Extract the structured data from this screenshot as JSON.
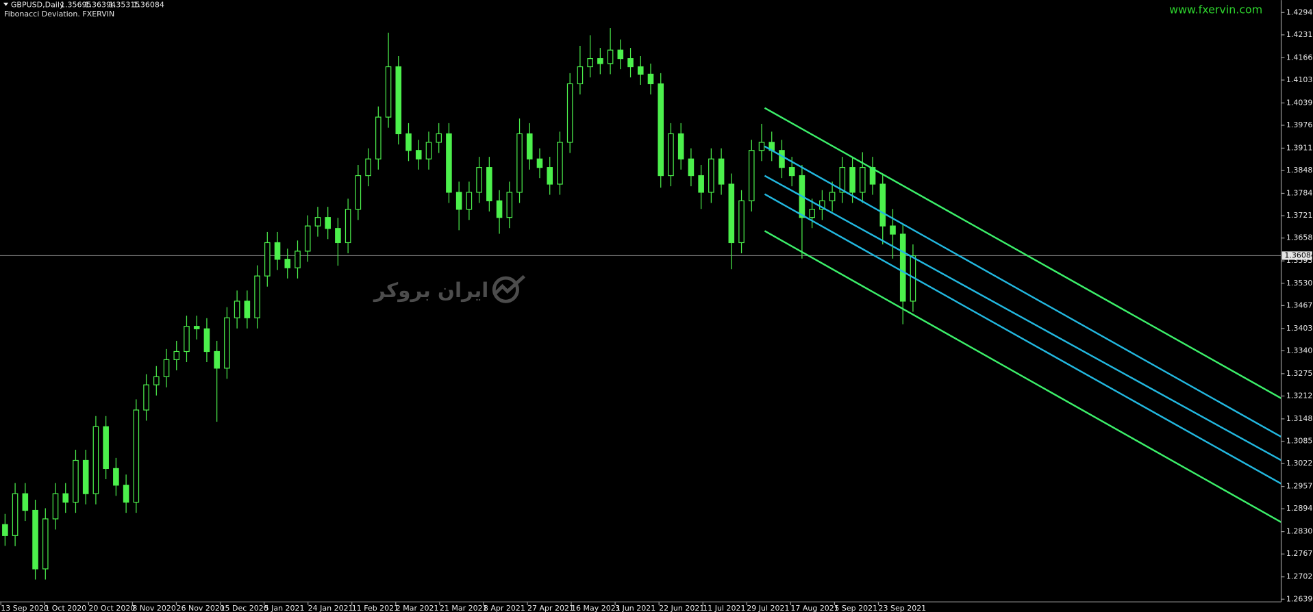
{
  "chart_data": {
    "type": "candlestick",
    "title": "GBPUSD,Daily",
    "header_values": [
      "1.35695",
      "1.36394",
      "1.35315",
      "1.36084"
    ],
    "indicator": "Fibonacci Deviation. FXERVIN",
    "website": "www.fxervin.com",
    "watermark": "ایران بروکر",
    "color": "#4cf04c",
    "xlim": [
      0,
      127
    ],
    "ylim": [
      1.2632,
      1.4329
    ],
    "yticks": [
      {
        "value": 1.4294,
        "label": "1.42940"
      },
      {
        "value": 1.4231,
        "label": "1.42310"
      },
      {
        "value": 1.41665,
        "label": "1.41665"
      },
      {
        "value": 1.41035,
        "label": "1.41035"
      },
      {
        "value": 1.4039,
        "label": "1.40390"
      },
      {
        "value": 1.3976,
        "label": "1.39760"
      },
      {
        "value": 1.39115,
        "label": "1.39115"
      },
      {
        "value": 1.38485,
        "label": "1.38485"
      },
      {
        "value": 1.3784,
        "label": "1.37840"
      },
      {
        "value": 1.3721,
        "label": "1.37210"
      },
      {
        "value": 1.3658,
        "label": "1.36580"
      },
      {
        "value": 1.35935,
        "label": "1.35935"
      },
      {
        "value": 1.35305,
        "label": "1.35305"
      },
      {
        "value": 1.34675,
        "label": "1.34675"
      },
      {
        "value": 1.3403,
        "label": "1.34030"
      },
      {
        "value": 1.334,
        "label": "1.33400"
      },
      {
        "value": 1.32755,
        "label": "1.32755"
      },
      {
        "value": 1.32125,
        "label": "1.32125"
      },
      {
        "value": 1.3148,
        "label": "1.31480"
      },
      {
        "value": 1.3085,
        "label": "1.30850"
      },
      {
        "value": 1.3022,
        "label": "1.30220"
      },
      {
        "value": 1.29575,
        "label": "1.29575"
      },
      {
        "value": 1.28945,
        "label": "1.28945"
      },
      {
        "value": 1.283,
        "label": "1.28300"
      },
      {
        "value": 1.2767,
        "label": "1.27670"
      },
      {
        "value": 1.27025,
        "label": "1.27025"
      },
      {
        "value": 1.26395,
        "label": "1.26395"
      }
    ],
    "current_price": {
      "value": 1.36084,
      "label": "1.36084"
    },
    "x_labels": [
      "13 Sep 2020",
      "1 Oct 2020",
      "20 Oct 2020",
      "8 Nov 2020",
      "26 Nov 2020",
      "15 Dec 2020",
      "5 Jan 2021",
      "24 Jan 2021",
      "11 Feb 2021",
      "2 Mar 2021",
      "21 Mar 2021",
      "8 Apr 2021",
      "27 Apr 2021",
      "16 May 2021",
      "3 Jun 2021",
      "22 Jun 2021",
      "11 Jul 2021",
      "29 Jul 2021",
      "17 Aug 2021",
      "5 Sep 2021",
      "23 Sep 2021"
    ],
    "ohlc": [
      [
        1.285,
        1.288,
        1.279,
        1.2819
      ],
      [
        1.2819,
        1.2967,
        1.2789,
        1.2937
      ],
      [
        1.2937,
        1.2967,
        1.286,
        1.289
      ],
      [
        1.289,
        1.292,
        1.2695,
        1.2725
      ],
      [
        1.2725,
        1.2896,
        1.2695,
        1.2866
      ],
      [
        1.2866,
        1.2967,
        1.2836,
        1.2937
      ],
      [
        1.2937,
        1.2967,
        1.2883,
        1.2913
      ],
      [
        1.2913,
        1.3061,
        1.2883,
        1.3031
      ],
      [
        1.3031,
        1.3061,
        1.2907,
        1.2937
      ],
      [
        1.2937,
        1.3156,
        1.2907,
        1.3126
      ],
      [
        1.3126,
        1.3156,
        1.2978,
        1.3008
      ],
      [
        1.3008,
        1.3038,
        1.2931,
        1.2961
      ],
      [
        1.2961,
        1.2991,
        1.2883,
        1.2913
      ],
      [
        1.2913,
        1.3203,
        1.2883,
        1.3173
      ],
      [
        1.3173,
        1.3274,
        1.3143,
        1.3244
      ],
      [
        1.3244,
        1.3297,
        1.3214,
        1.3267
      ],
      [
        1.3267,
        1.3345,
        1.3237,
        1.3315
      ],
      [
        1.3315,
        1.3368,
        1.3285,
        1.3338
      ],
      [
        1.3338,
        1.3439,
        1.3308,
        1.3409
      ],
      [
        1.3409,
        1.3439,
        1.3372,
        1.3402
      ],
      [
        1.3402,
        1.3432,
        1.3308,
        1.3338
      ],
      [
        1.3338,
        1.3368,
        1.314,
        1.3291
      ],
      [
        1.3291,
        1.3463,
        1.3261,
        1.3433
      ],
      [
        1.3433,
        1.351,
        1.3403,
        1.348
      ],
      [
        1.348,
        1.351,
        1.3403,
        1.3433
      ],
      [
        1.3433,
        1.3581,
        1.3403,
        1.3551
      ],
      [
        1.3551,
        1.3675,
        1.3521,
        1.3645
      ],
      [
        1.3645,
        1.3675,
        1.3568,
        1.3598
      ],
      [
        1.3598,
        1.3628,
        1.3544,
        1.3574
      ],
      [
        1.3574,
        1.3651,
        1.3544,
        1.3621
      ],
      [
        1.3621,
        1.3722,
        1.3591,
        1.3692
      ],
      [
        1.3692,
        1.3746,
        1.3662,
        1.3716
      ],
      [
        1.3716,
        1.3746,
        1.3655,
        1.3685
      ],
      [
        1.3685,
        1.3715,
        1.358,
        1.3645
      ],
      [
        1.3645,
        1.3769,
        1.3615,
        1.3739
      ],
      [
        1.3739,
        1.3864,
        1.3709,
        1.3834
      ],
      [
        1.3834,
        1.3911,
        1.3804,
        1.3881
      ],
      [
        1.3881,
        1.4029,
        1.3851,
        1.3999
      ],
      [
        1.3999,
        1.4237,
        1.3969,
        1.4141
      ],
      [
        1.4141,
        1.4171,
        1.3922,
        1.3952
      ],
      [
        1.3952,
        1.3982,
        1.3875,
        1.3905
      ],
      [
        1.3905,
        1.3935,
        1.3851,
        1.3881
      ],
      [
        1.3881,
        1.3958,
        1.3851,
        1.3928
      ],
      [
        1.3928,
        1.3982,
        1.3898,
        1.3952
      ],
      [
        1.3952,
        1.3982,
        1.3757,
        1.3787
      ],
      [
        1.3787,
        1.3817,
        1.368,
        1.3739
      ],
      [
        1.3739,
        1.3817,
        1.3709,
        1.3787
      ],
      [
        1.3787,
        1.3887,
        1.3757,
        1.3857
      ],
      [
        1.3857,
        1.3887,
        1.3733,
        1.3763
      ],
      [
        1.3763,
        1.3793,
        1.367,
        1.3716
      ],
      [
        1.3716,
        1.3817,
        1.3686,
        1.3787
      ],
      [
        1.3787,
        1.3995,
        1.3757,
        1.3952
      ],
      [
        1.3952,
        1.3982,
        1.3851,
        1.3881
      ],
      [
        1.3881,
        1.3911,
        1.3827,
        1.3857
      ],
      [
        1.3857,
        1.3887,
        1.378,
        1.381
      ],
      [
        1.381,
        1.3958,
        1.378,
        1.3928
      ],
      [
        1.3928,
        1.4123,
        1.3898,
        1.4093
      ],
      [
        1.4093,
        1.42,
        1.4063,
        1.4141
      ],
      [
        1.4141,
        1.423,
        1.4111,
        1.4164
      ],
      [
        1.4164,
        1.4194,
        1.412,
        1.415
      ],
      [
        1.415,
        1.425,
        1.412,
        1.4188
      ],
      [
        1.4188,
        1.4218,
        1.4134,
        1.4164
      ],
      [
        1.4164,
        1.4194,
        1.4111,
        1.4141
      ],
      [
        1.4141,
        1.4171,
        1.409,
        1.412
      ],
      [
        1.412,
        1.415,
        1.4063,
        1.4093
      ],
      [
        1.4093,
        1.4123,
        1.38,
        1.3834
      ],
      [
        1.3834,
        1.3982,
        1.3804,
        1.3952
      ],
      [
        1.3952,
        1.3982,
        1.3851,
        1.3881
      ],
      [
        1.3881,
        1.3911,
        1.3804,
        1.3834
      ],
      [
        1.3834,
        1.3864,
        1.374,
        1.3787
      ],
      [
        1.3787,
        1.3911,
        1.3757,
        1.3881
      ],
      [
        1.3881,
        1.3911,
        1.378,
        1.381
      ],
      [
        1.381,
        1.384,
        1.357,
        1.3645
      ],
      [
        1.3645,
        1.3793,
        1.3615,
        1.3763
      ],
      [
        1.3763,
        1.3935,
        1.3733,
        1.3905
      ],
      [
        1.3905,
        1.398,
        1.3875,
        1.3928
      ],
      [
        1.3928,
        1.3958,
        1.3875,
        1.3905
      ],
      [
        1.3905,
        1.3935,
        1.3827,
        1.3857
      ],
      [
        1.3857,
        1.3887,
        1.3804,
        1.3834
      ],
      [
        1.3834,
        1.3864,
        1.36,
        1.3716
      ],
      [
        1.3716,
        1.3769,
        1.3686,
        1.3739
      ],
      [
        1.3739,
        1.3793,
        1.3709,
        1.3763
      ],
      [
        1.3763,
        1.3817,
        1.3733,
        1.3787
      ],
      [
        1.3787,
        1.3887,
        1.3757,
        1.3857
      ],
      [
        1.3857,
        1.3887,
        1.3757,
        1.3787
      ],
      [
        1.3787,
        1.39,
        1.3757,
        1.3857
      ],
      [
        1.3857,
        1.3887,
        1.378,
        1.381
      ],
      [
        1.381,
        1.384,
        1.364,
        1.3692
      ],
      [
        1.3692,
        1.374,
        1.36,
        1.3669
      ],
      [
        1.3669,
        1.3699,
        1.3415,
        1.348
      ],
      [
        1.348,
        1.364,
        1.345,
        1.3608
      ]
    ],
    "channels": [
      {
        "color": "#3cf06a",
        "x": [
          75.8,
          127
        ],
        "y": [
          1.40249,
          1.3206
        ]
      },
      {
        "color": "#22b8e0",
        "x": [
          75.8,
          127
        ],
        "y": [
          1.39164,
          1.30974
        ]
      },
      {
        "color": "#22b8e0",
        "x": [
          75.8,
          127
        ],
        "y": [
          1.38338,
          1.30313
        ]
      },
      {
        "color": "#22b8e0",
        "x": [
          75.8,
          127
        ],
        "y": [
          1.37818,
          1.29652
        ]
      },
      {
        "color": "#3cf06a",
        "x": [
          75.8,
          127
        ],
        "y": [
          1.3678,
          1.28567
        ]
      }
    ]
  }
}
